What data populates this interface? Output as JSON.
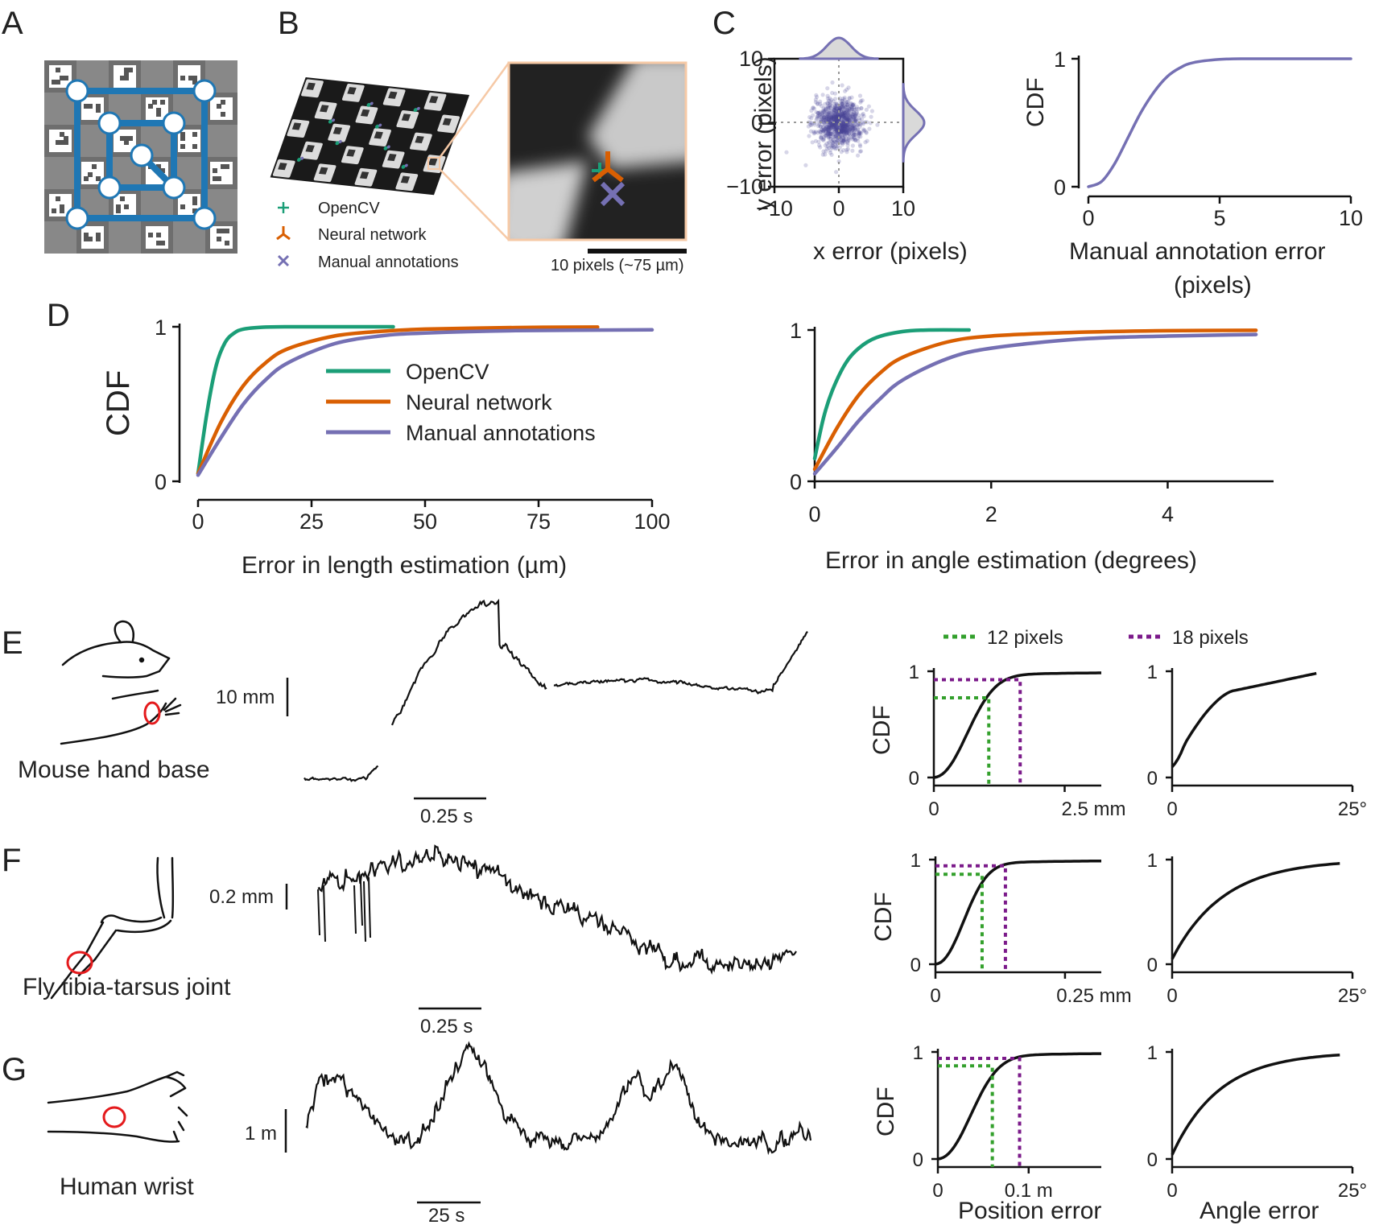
{
  "panel_letters": [
    "A",
    "B",
    "C",
    "D",
    "E",
    "F",
    "G"
  ],
  "colors": {
    "opencv": "#1b9e77",
    "neural": "#d95f02",
    "manual": "#7570b3",
    "green_dotted": "#33a02c",
    "purple_dotted": "#7b1a8a",
    "board_blue": "#1f77b4",
    "highlight_red": "#e41a1c"
  },
  "panelB": {
    "legend": [
      "OpenCV",
      "Neural network",
      "Manual annotations"
    ],
    "scalebar_label": "10 pixels (~75 µm)"
  },
  "chart_data": [
    {
      "id": "C-scatter",
      "type": "scatter",
      "xlabel": "x error (pixels)",
      "ylabel": "y error (pixels)",
      "xlim": [
        -10,
        10
      ],
      "ylim": [
        -10,
        10
      ],
      "xticks": [
        "−10",
        "0",
        "10"
      ],
      "yticks": [
        "10",
        "0",
        "−10"
      ],
      "points": "isotropic cloud of manual annotation errors centered at (0, 0), spread about 2 pixels",
      "marginal_histograms": true
    },
    {
      "id": "C-cdf",
      "type": "line",
      "xlabel": "Manual annotation error",
      "xlabel2": "(pixels)",
      "ylabel": "CDF",
      "xlim": [
        0,
        10
      ],
      "ylim": [
        0,
        1
      ],
      "xticks": [
        "0",
        "5",
        "10"
      ],
      "yticks": [
        "1",
        "0"
      ],
      "series": [
        {
          "color": "manual",
          "x": [
            0,
            0.5,
            1,
            1.5,
            2,
            2.5,
            3,
            3.5,
            4,
            5,
            6,
            8,
            10
          ],
          "y": [
            0,
            0.04,
            0.18,
            0.38,
            0.58,
            0.74,
            0.86,
            0.93,
            0.97,
            0.995,
            1.0,
            1.0,
            1.0
          ]
        }
      ]
    },
    {
      "id": "D-length",
      "type": "line",
      "xlabel": "Error in length estimation (µm)",
      "ylabel": "CDF",
      "xlim": [
        0,
        100
      ],
      "ylim": [
        0,
        1
      ],
      "xticks": [
        "0",
        "25",
        "50",
        "75",
        "100"
      ],
      "yticks": [
        "1",
        "0"
      ],
      "legend": [
        "OpenCV",
        "Neural network",
        "Manual annotations"
      ],
      "series": [
        {
          "name": "OpenCV",
          "color": "opencv",
          "x": [
            0,
            2,
            4,
            6,
            8,
            10,
            14,
            20,
            30,
            43
          ],
          "y": [
            0.05,
            0.45,
            0.75,
            0.9,
            0.96,
            0.985,
            0.997,
            1.0,
            1.0,
            1.0
          ]
        },
        {
          "name": "Neural network",
          "color": "neural",
          "x": [
            0,
            5,
            10,
            15,
            20,
            30,
            40,
            50,
            70,
            88
          ],
          "y": [
            0.05,
            0.38,
            0.62,
            0.77,
            0.86,
            0.94,
            0.97,
            0.985,
            0.995,
            0.998
          ]
        },
        {
          "name": "Manual annotations",
          "color": "manual",
          "x": [
            0,
            5,
            10,
            15,
            20,
            30,
            40,
            50,
            70,
            100
          ],
          "y": [
            0.04,
            0.28,
            0.5,
            0.66,
            0.77,
            0.89,
            0.94,
            0.96,
            0.975,
            0.98
          ]
        }
      ]
    },
    {
      "id": "D-angle",
      "type": "line",
      "xlabel": "Error in angle estimation (degrees)",
      "xlim": [
        0,
        5.2
      ],
      "ylim": [
        0,
        1
      ],
      "xticks": [
        "0",
        "2",
        "4"
      ],
      "yticks": [
        "1",
        "0"
      ],
      "series": [
        {
          "name": "OpenCV",
          "color": "opencv",
          "x": [
            0,
            0.1,
            0.2,
            0.35,
            0.5,
            0.7,
            1.0,
            1.3,
            1.75
          ],
          "y": [
            0.15,
            0.42,
            0.6,
            0.78,
            0.88,
            0.95,
            0.99,
            1.0,
            1.0
          ]
        },
        {
          "name": "Neural network",
          "color": "neural",
          "x": [
            0,
            0.25,
            0.5,
            0.75,
            1.0,
            1.5,
            2.0,
            3.0,
            4.0,
            5.0
          ],
          "y": [
            0.08,
            0.35,
            0.57,
            0.72,
            0.82,
            0.92,
            0.96,
            0.985,
            0.995,
            0.998
          ]
        },
        {
          "name": "Manual annotations",
          "color": "manual",
          "x": [
            0,
            0.25,
            0.5,
            0.75,
            1.0,
            1.5,
            2.0,
            3.0,
            4.0,
            5.0
          ],
          "y": [
            0.05,
            0.22,
            0.4,
            0.55,
            0.67,
            0.81,
            0.88,
            0.94,
            0.96,
            0.97
          ]
        }
      ]
    }
  ],
  "rows": [
    {
      "label": "Mouse hand base",
      "trace_scale": "10 mm",
      "time_scale": "0.25 s",
      "pos_cdf": {
        "xticks": [
          "0",
          "2.5 mm"
        ],
        "xmax": 3.2,
        "x12": 1.05,
        "x18": 1.65,
        "y12": 0.75,
        "y18": 0.92,
        "yticks": [
          "1",
          "0"
        ],
        "ylabel": "CDF"
      },
      "ang_cdf": {
        "xticks": [
          "0",
          "25°"
        ],
        "yticks": [
          "1",
          "0"
        ]
      }
    },
    {
      "label": "Fly tibia-tarsus joint",
      "trace_scale": "0.2 mm",
      "time_scale": "0.25 s",
      "pos_cdf": {
        "xticks": [
          "0",
          "0.25 mm"
        ],
        "xmax": 0.32,
        "x12": 0.09,
        "x18": 0.135,
        "y12": 0.86,
        "y18": 0.94,
        "yticks": [
          "1",
          "0"
        ],
        "ylabel": "CDF"
      },
      "ang_cdf": {
        "xticks": [
          "0",
          "25°"
        ],
        "yticks": [
          "1",
          "0"
        ]
      }
    },
    {
      "label": "Human wrist",
      "trace_scale": "1 m",
      "time_scale": "25 s",
      "pos_cdf": {
        "xticks": [
          "0",
          "0.1 m"
        ],
        "xmax": 0.18,
        "x12": 0.06,
        "x18": 0.09,
        "y12": 0.87,
        "y18": 0.94,
        "yticks": [
          "1",
          "0"
        ],
        "ylabel": "CDF"
      },
      "ang_cdf": {
        "xticks": [
          "0",
          "25°"
        ],
        "yticks": [
          "1",
          "0"
        ]
      }
    }
  ],
  "threshold_legend": [
    "12 pixels",
    "18 pixels"
  ],
  "bottom_labels": {
    "position": "Position error",
    "angle": "Angle error"
  }
}
